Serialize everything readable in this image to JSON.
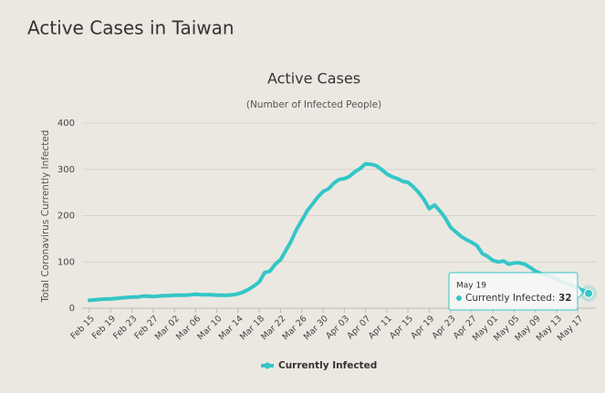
{
  "header": {
    "title": "Active Cases in Taiwan"
  },
  "chart_data": {
    "type": "line",
    "title": "Active Cases",
    "subtitle": "(Number of Infected People)",
    "y_label": "Total Coronavirus Currently Infected",
    "categories": [
      "Feb 15",
      null,
      null,
      null,
      "Feb 19",
      null,
      null,
      null,
      "Feb 23",
      null,
      null,
      null,
      "Feb 27",
      null,
      null,
      null,
      "Mar 02",
      null,
      null,
      null,
      "Mar 06",
      null,
      null,
      null,
      "Mar 10",
      null,
      null,
      null,
      "Mar 14",
      null,
      null,
      null,
      "Mar 18",
      null,
      null,
      null,
      "Mar 22",
      null,
      null,
      null,
      "Mar 26",
      null,
      null,
      null,
      "Mar 30",
      null,
      null,
      null,
      "Apr 03",
      null,
      null,
      null,
      "Apr 07",
      null,
      null,
      null,
      "Apr 11",
      null,
      null,
      null,
      "Apr 15",
      null,
      null,
      null,
      "Apr 19",
      null,
      null,
      null,
      "Apr 23",
      null,
      null,
      null,
      "Apr 27",
      null,
      null,
      null,
      "May 01",
      null,
      null,
      null,
      "May 05",
      null,
      null,
      null,
      "May 09",
      null,
      null,
      null,
      "May 13",
      null,
      null,
      null,
      "May 17",
      null,
      null
    ],
    "series": [
      {
        "name": "Currently Infected",
        "color": "#33c6c6",
        "values": [
          17,
          18,
          19,
          20,
          20,
          21,
          22,
          23,
          24,
          24,
          26,
          26,
          25,
          26,
          27,
          27,
          28,
          28,
          28,
          29,
          30,
          29,
          29,
          29,
          28,
          28,
          28,
          29,
          31,
          35,
          41,
          48,
          57,
          77,
          80,
          95,
          105,
          125,
          145,
          170,
          190,
          210,
          225,
          240,
          252,
          258,
          270,
          278,
          280,
          285,
          295,
          302,
          312,
          311,
          308,
          300,
          290,
          284,
          280,
          274,
          272,
          262,
          250,
          235,
          215,
          223,
          210,
          195,
          175,
          165,
          155,
          148,
          142,
          135,
          118,
          112,
          103,
          100,
          102,
          95,
          98,
          98,
          95,
          88,
          80,
          75,
          72,
          68,
          63,
          58,
          53,
          48,
          43,
          38,
          32
        ]
      }
    ],
    "ylim": [
      0,
      400
    ],
    "yticks": [
      0,
      100,
      200,
      300,
      400
    ],
    "grid": true,
    "legend": "bottom",
    "tooltip": {
      "date": "May 19",
      "label": "Currently Infected:"
    }
  }
}
